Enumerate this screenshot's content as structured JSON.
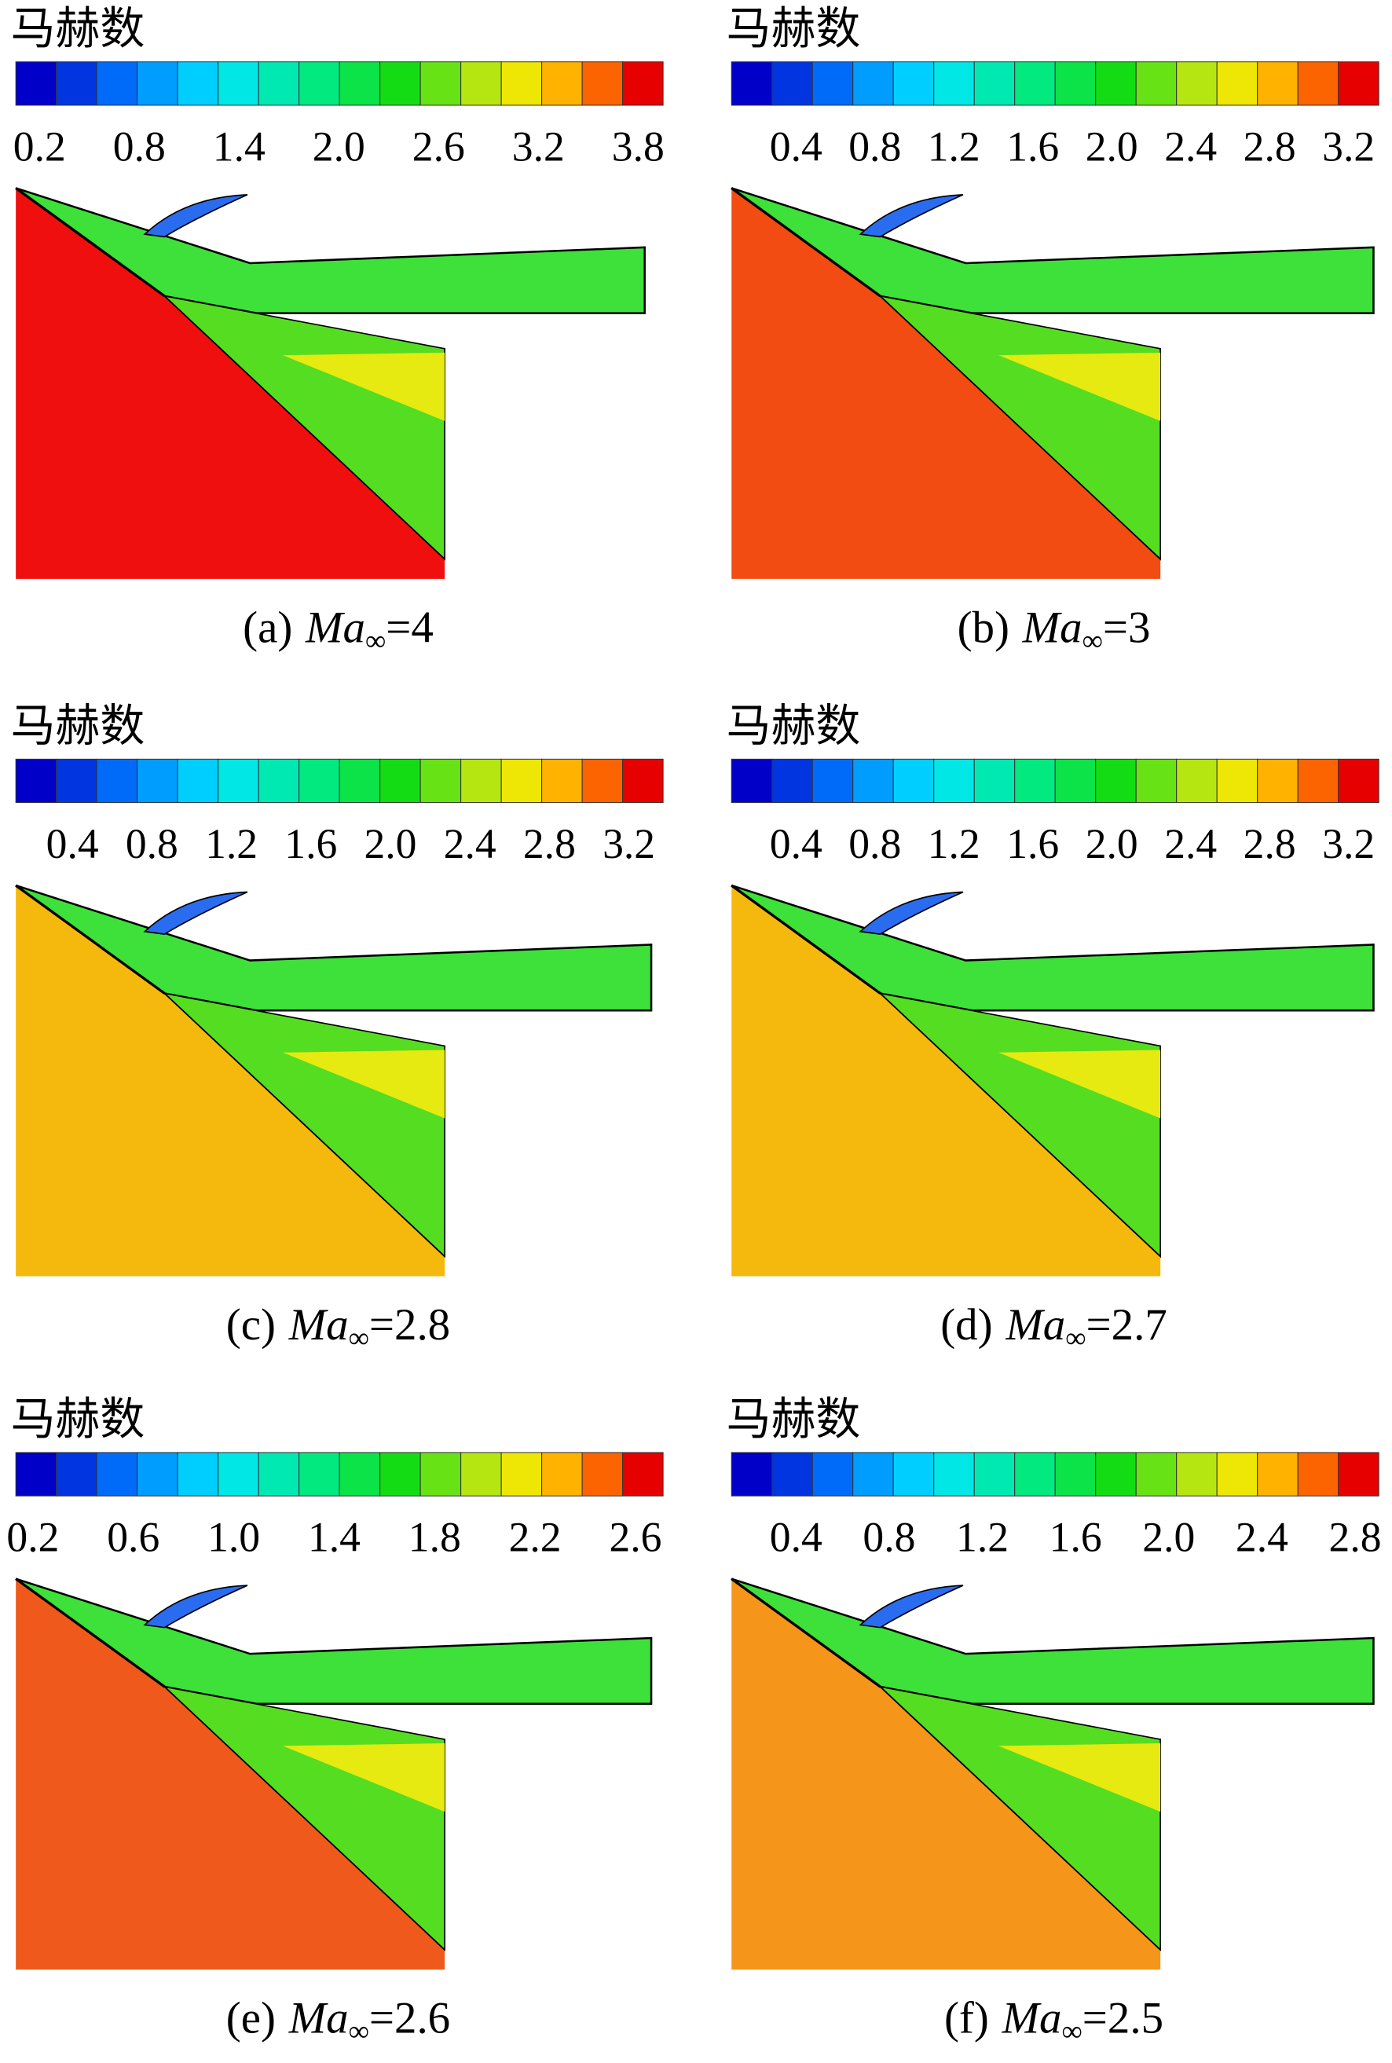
{
  "panels": [
    {
      "legend_title": "马赫数",
      "ticks": [
        "0.2",
        "0.8",
        "1.4",
        "2.0",
        "2.6",
        "3.2",
        "3.8"
      ],
      "caption": {
        "label": "(a)",
        "variable": "Ma",
        "subscript": "∞",
        "value": "=4"
      }
    },
    {
      "legend_title": "马赫数",
      "ticks": [
        "0.4",
        "0.8",
        "1.2",
        "1.6",
        "2.0",
        "2.4",
        "2.8",
        "3.2"
      ],
      "caption": {
        "label": "(b)",
        "variable": "Ma",
        "subscript": "∞",
        "value": "=3"
      }
    },
    {
      "legend_title": "马赫数",
      "ticks": [
        "0.4",
        "0.8",
        "1.2",
        "1.6",
        "2.0",
        "2.4",
        "2.8",
        "3.2"
      ],
      "caption": {
        "label": "(c)",
        "variable": "Ma",
        "subscript": "∞",
        "value": "=2.8"
      }
    },
    {
      "legend_title": "马赫数",
      "ticks": [
        "0.4",
        "0.8",
        "1.2",
        "1.6",
        "2.0",
        "2.4",
        "2.8",
        "3.2"
      ],
      "caption": {
        "label": "(d)",
        "variable": "Ma",
        "subscript": "∞",
        "value": "=2.7"
      }
    },
    {
      "legend_title": "马赫数",
      "ticks": [
        "0.2",
        "0.6",
        "1.0",
        "1.4",
        "1.8",
        "2.2",
        "2.6"
      ],
      "caption": {
        "label": "(e)",
        "variable": "Ma",
        "subscript": "∞",
        "value": "=2.6"
      }
    },
    {
      "legend_title": "马赫数",
      "ticks": [
        "0.4",
        "0.8",
        "1.2",
        "1.6",
        "2.0",
        "2.4",
        "2.8"
      ],
      "caption": {
        "label": "(f)",
        "variable": "Ma",
        "subscript": "∞",
        "value": "=2.5"
      }
    }
  ]
}
